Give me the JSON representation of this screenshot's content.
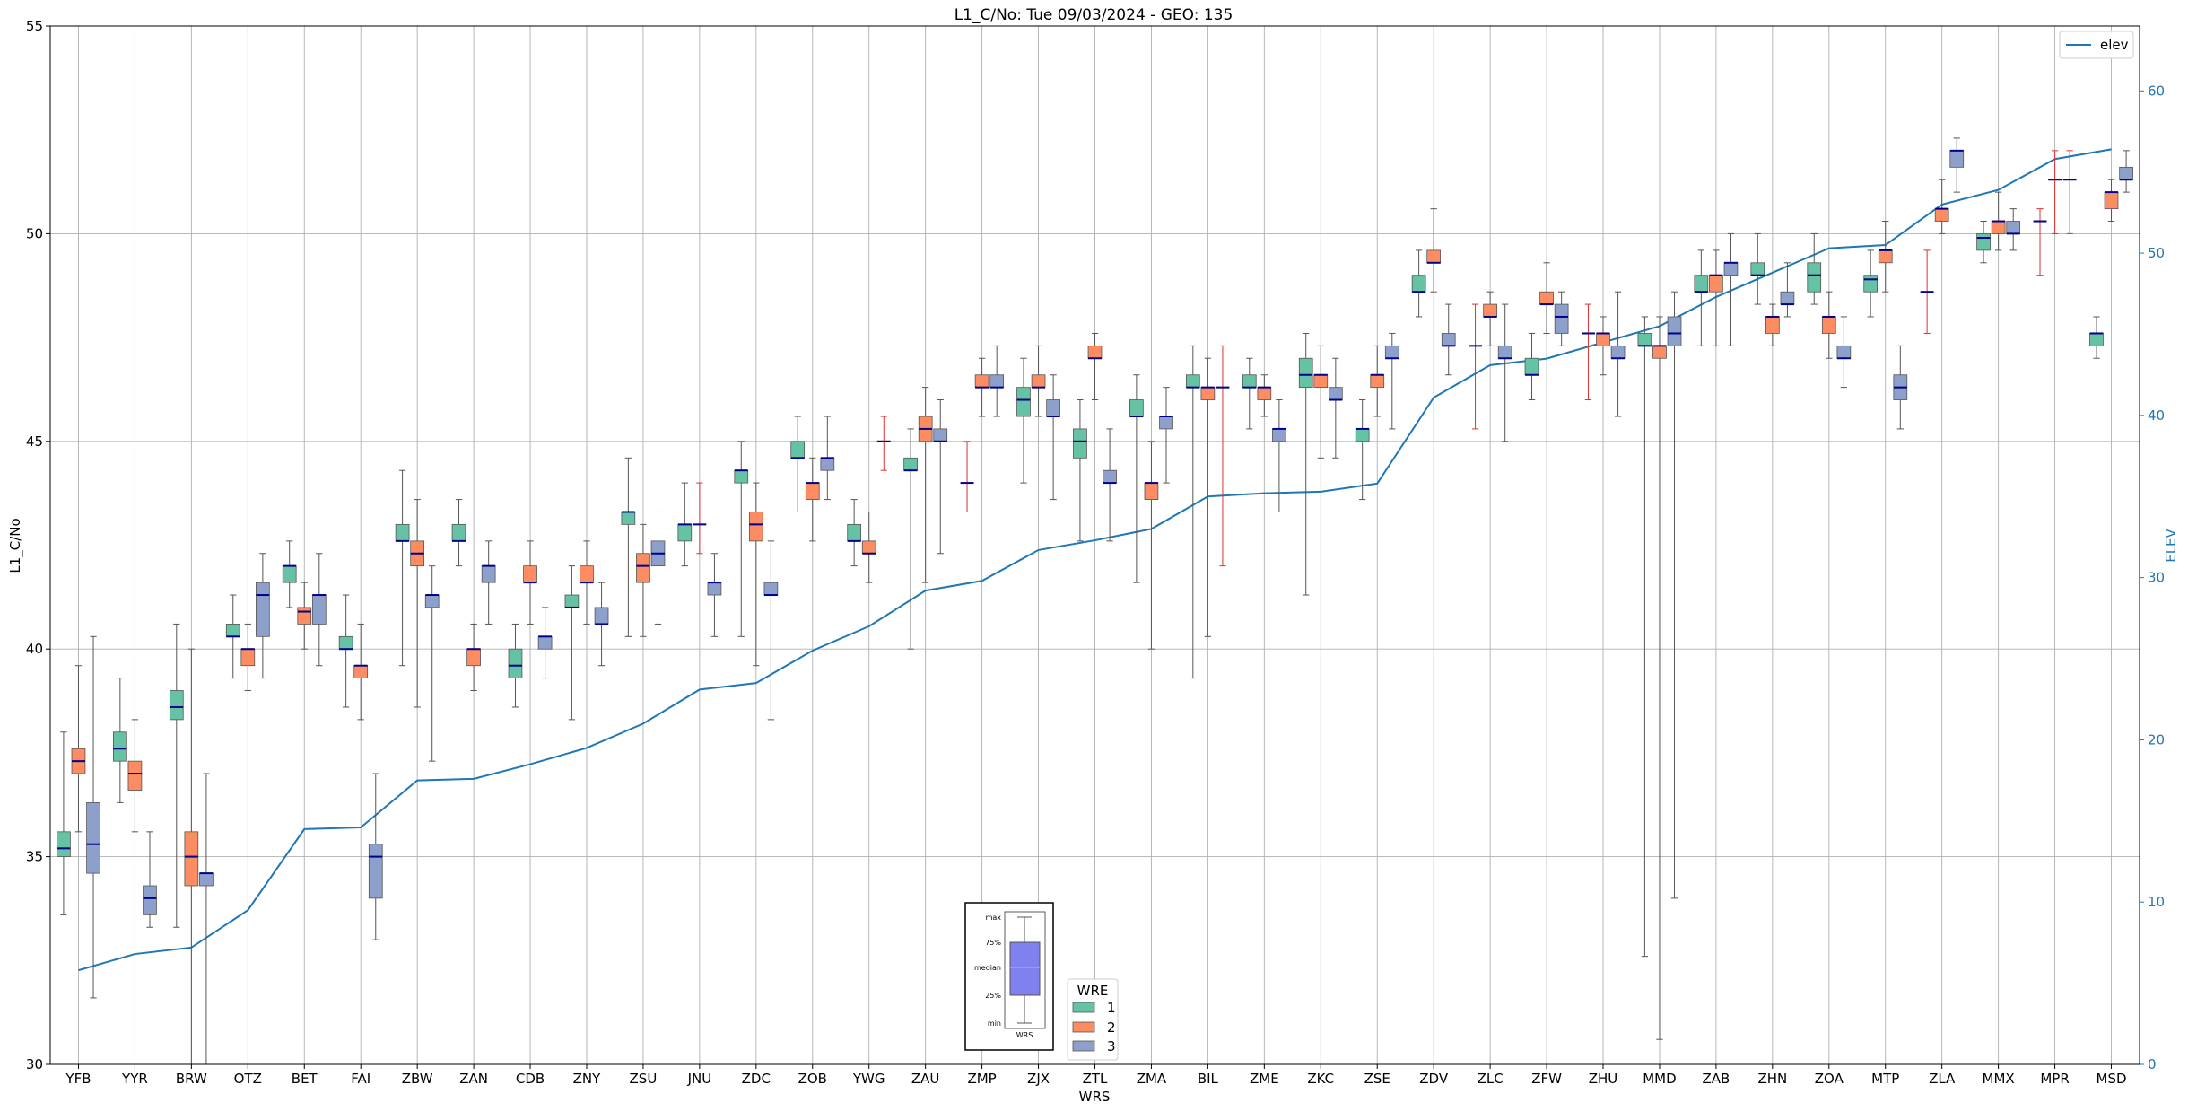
{
  "chart_data": {
    "type": "box",
    "title": "L1_C/No: Tue 09/03/2024 - GEO: 135",
    "xlabel": "WRS",
    "ylabel": "L1_C/No",
    "ylabel_right": "ELEV",
    "ylim": [
      30,
      55
    ],
    "ylim_right": [
      0,
      64
    ],
    "yticks": [
      30,
      35,
      40,
      45,
      50,
      55
    ],
    "yticks_right": [
      0,
      10,
      20,
      30,
      40,
      50,
      60
    ],
    "grid": true,
    "categories": [
      "YFB",
      "YYR",
      "BRW",
      "OTZ",
      "BET",
      "FAI",
      "ZBW",
      "ZAN",
      "CDB",
      "ZNY",
      "ZSU",
      "JNU",
      "ZDC",
      "ZOB",
      "YWG",
      "ZAU",
      "ZMP",
      "ZJX",
      "ZTL",
      "ZMA",
      "BIL",
      "ZME",
      "ZKC",
      "ZSE",
      "ZDV",
      "ZLC",
      "ZFW",
      "ZHU",
      "MMD",
      "ZAB",
      "ZHN",
      "ZOA",
      "MTP",
      "ZLA",
      "MMX",
      "MPR",
      "MSD"
    ],
    "wre_colors": {
      "1": "#66c2a5",
      "2": "#fc8d62",
      "3": "#8da0cb"
    },
    "median_color": "#00008b",
    "elev_color": "#1f77b4",
    "legend_wre": {
      "title": "WRE",
      "items": [
        "1",
        "2",
        "3"
      ],
      "position": "bottom-center"
    },
    "legend_elev": {
      "label": "elev",
      "position": "top-right"
    },
    "inset": {
      "labels": {
        "max": "max",
        "q3": "75%",
        "median": "median",
        "q1": "25%",
        "min": "min",
        "xlabel": "WRS"
      }
    },
    "elev": [
      5.8,
      6.8,
      7.2,
      9.5,
      14.5,
      14.6,
      17.5,
      17.6,
      18.5,
      19.5,
      21.0,
      23.1,
      23.5,
      25.5,
      27.0,
      29.2,
      29.8,
      31.7,
      32.3,
      33.0,
      35.0,
      35.2,
      35.3,
      35.8,
      41.1,
      43.1,
      43.5,
      44.5,
      45.5,
      47.3,
      48.8,
      50.3,
      50.5,
      53.0,
      53.9,
      55.8,
      56.4
    ],
    "series": [
      {
        "name": "1",
        "boxes": [
          [
            0,
            33.6,
            35.0,
            35.2,
            35.6,
            38.0
          ],
          [
            1,
            36.3,
            37.3,
            37.6,
            38.0,
            39.3
          ],
          [
            2,
            33.3,
            38.3,
            38.6,
            39.0,
            40.6
          ],
          [
            3,
            39.3,
            40.3,
            40.3,
            40.6,
            41.3
          ],
          [
            4,
            41.0,
            41.6,
            42.0,
            42.0,
            42.6
          ],
          [
            5,
            38.6,
            40.0,
            40.0,
            40.3,
            41.3
          ],
          [
            6,
            39.6,
            42.6,
            42.6,
            43.0,
            44.3
          ],
          [
            7,
            42.0,
            42.6,
            42.6,
            43.0,
            43.6
          ],
          [
            8,
            38.6,
            39.3,
            39.6,
            40.0,
            40.6
          ],
          [
            9,
            38.3,
            41.0,
            41.0,
            41.3,
            42.0
          ],
          [
            10,
            40.3,
            43.0,
            43.3,
            43.3,
            44.6
          ],
          [
            11,
            42.0,
            42.6,
            43.0,
            43.0,
            44.0
          ],
          [
            12,
            40.3,
            44.0,
            44.3,
            44.3,
            45.0
          ],
          [
            13,
            43.3,
            44.6,
            44.6,
            45.0,
            45.6
          ],
          [
            14,
            42.0,
            42.6,
            42.6,
            43.0,
            43.6
          ],
          [
            15,
            40.0,
            44.3,
            44.3,
            44.6,
            45.3
          ],
          [
            16,
            43.3,
            44.0,
            44.0,
            44.0,
            45.0
          ],
          [
            17,
            44.0,
            45.6,
            46.0,
            46.3,
            47.0
          ],
          [
            18,
            42.6,
            44.6,
            45.0,
            45.3,
            46.0
          ],
          [
            19,
            41.6,
            45.6,
            45.6,
            46.0,
            46.6
          ],
          [
            20,
            39.3,
            46.3,
            46.3,
            46.6,
            47.3
          ],
          [
            21,
            45.3,
            46.3,
            46.3,
            46.6,
            47.0
          ],
          [
            22,
            41.3,
            46.3,
            46.6,
            47.0,
            47.6
          ],
          [
            23,
            43.6,
            45.0,
            45.3,
            45.3,
            46.0
          ],
          [
            24,
            48.0,
            48.6,
            48.6,
            49.0,
            49.6
          ],
          [
            25,
            45.3,
            47.3,
            47.3,
            47.3,
            48.3
          ],
          [
            26,
            46.0,
            46.6,
            46.6,
            47.0,
            47.6
          ],
          [
            27,
            46.0,
            47.6,
            47.6,
            47.6,
            48.3
          ],
          [
            28,
            32.6,
            47.3,
            47.3,
            47.6,
            48.0
          ],
          [
            29,
            47.3,
            48.6,
            48.6,
            49.0,
            49.6
          ],
          [
            30,
            48.3,
            49.0,
            49.0,
            49.3,
            50.0
          ],
          [
            31,
            48.3,
            48.6,
            49.0,
            49.3,
            50.0
          ],
          [
            32,
            48.0,
            48.6,
            48.9,
            49.0,
            49.6
          ],
          [
            33,
            47.6,
            48.6,
            48.6,
            48.6,
            49.6
          ],
          [
            34,
            49.3,
            49.6,
            49.9,
            50.0,
            50.3
          ],
          [
            35,
            49.0,
            50.3,
            50.3,
            50.3,
            50.6
          ],
          [
            36,
            47.0,
            47.3,
            47.6,
            47.6,
            48.0
          ]
        ]
      },
      {
        "name": "2",
        "boxes": [
          [
            0,
            35.6,
            37.0,
            37.3,
            37.6,
            39.6
          ],
          [
            1,
            35.6,
            36.6,
            37.0,
            37.3,
            38.3
          ],
          [
            2,
            30.0,
            34.3,
            35.0,
            35.6,
            40.0
          ],
          [
            3,
            39.0,
            39.6,
            40.0,
            40.0,
            40.6
          ],
          [
            4,
            40.0,
            40.6,
            40.9,
            41.0,
            41.6
          ],
          [
            5,
            38.3,
            39.3,
            39.6,
            39.6,
            40.6
          ],
          [
            6,
            38.6,
            42.0,
            42.3,
            42.6,
            43.6
          ],
          [
            7,
            39.0,
            39.6,
            40.0,
            40.0,
            40.6
          ],
          [
            8,
            40.6,
            41.6,
            41.6,
            42.0,
            42.6
          ],
          [
            9,
            40.6,
            41.6,
            41.6,
            42.0,
            42.6
          ],
          [
            10,
            40.3,
            41.6,
            42.0,
            42.3,
            43.0
          ],
          [
            11,
            42.3,
            43.0,
            43.0,
            43.0,
            44.0
          ],
          [
            12,
            39.6,
            42.6,
            43.0,
            43.3,
            44.0
          ],
          [
            13,
            42.6,
            43.6,
            44.0,
            44.0,
            44.6
          ],
          [
            14,
            41.6,
            42.3,
            42.3,
            42.6,
            43.3
          ],
          [
            15,
            41.6,
            45.0,
            45.3,
            45.6,
            46.3
          ],
          [
            16,
            45.6,
            46.3,
            46.3,
            46.6,
            47.0
          ],
          [
            17,
            45.6,
            46.3,
            46.3,
            46.6,
            47.3
          ],
          [
            18,
            46.0,
            47.0,
            47.0,
            47.3,
            47.6
          ],
          [
            19,
            40.0,
            43.6,
            44.0,
            44.0,
            45.0
          ],
          [
            20,
            40.3,
            46.0,
            46.3,
            46.3,
            47.0
          ],
          [
            21,
            45.6,
            46.0,
            46.3,
            46.3,
            46.6
          ],
          [
            22,
            44.6,
            46.3,
            46.6,
            46.6,
            47.3
          ],
          [
            23,
            45.6,
            46.3,
            46.6,
            46.6,
            47.3
          ],
          [
            24,
            48.6,
            49.3,
            49.3,
            49.6,
            50.6
          ],
          [
            25,
            47.3,
            48.0,
            48.0,
            48.3,
            48.6
          ],
          [
            26,
            47.6,
            48.3,
            48.3,
            48.6,
            49.3
          ],
          [
            27,
            46.6,
            47.3,
            47.6,
            47.6,
            48.0
          ],
          [
            28,
            30.6,
            47.0,
            47.3,
            47.3,
            48.0
          ],
          [
            29,
            47.3,
            48.6,
            49.0,
            49.0,
            49.6
          ],
          [
            30,
            47.3,
            47.6,
            48.0,
            48.0,
            48.3
          ],
          [
            31,
            47.0,
            47.6,
            48.0,
            48.0,
            48.6
          ],
          [
            32,
            48.6,
            49.3,
            49.6,
            49.6,
            50.3
          ],
          [
            33,
            50.0,
            50.3,
            50.6,
            50.6,
            51.3
          ],
          [
            34,
            49.6,
            50.0,
            50.3,
            50.3,
            51.0
          ],
          [
            35,
            50.0,
            51.3,
            51.3,
            51.3,
            52.0
          ],
          [
            36,
            50.3,
            50.6,
            51.0,
            51.0,
            51.3
          ]
        ]
      },
      {
        "name": "3",
        "boxes": [
          [
            0,
            31.6,
            34.6,
            35.3,
            36.3,
            40.3
          ],
          [
            1,
            33.3,
            33.6,
            34.0,
            34.3,
            35.6
          ],
          [
            2,
            30.0,
            34.3,
            34.6,
            34.6,
            37.0
          ],
          [
            3,
            39.3,
            40.3,
            41.3,
            41.6,
            42.3
          ],
          [
            4,
            39.6,
            40.6,
            41.3,
            41.3,
            42.3
          ],
          [
            5,
            33.0,
            34.0,
            35.0,
            35.3,
            37.0
          ],
          [
            6,
            37.3,
            41.0,
            41.3,
            41.3,
            42.0
          ],
          [
            7,
            40.6,
            41.6,
            42.0,
            42.0,
            42.6
          ],
          [
            8,
            39.3,
            40.0,
            40.3,
            40.3,
            41.0
          ],
          [
            9,
            39.6,
            40.6,
            40.6,
            41.0,
            41.6
          ],
          [
            10,
            40.6,
            42.0,
            42.3,
            42.6,
            43.3
          ],
          [
            11,
            40.3,
            41.3,
            41.6,
            41.6,
            42.3
          ],
          [
            12,
            38.3,
            41.3,
            41.3,
            41.6,
            42.6
          ],
          [
            13,
            43.6,
            44.3,
            44.6,
            44.6,
            45.6
          ],
          [
            14,
            44.3,
            45.0,
            45.0,
            45.0,
            45.6
          ],
          [
            15,
            42.3,
            45.0,
            45.0,
            45.3,
            46.0
          ],
          [
            16,
            45.6,
            46.3,
            46.3,
            46.6,
            47.3
          ],
          [
            17,
            43.6,
            45.6,
            45.6,
            46.0,
            46.6
          ],
          [
            18,
            42.6,
            44.0,
            44.0,
            44.3,
            45.3
          ],
          [
            19,
            44.0,
            45.3,
            45.6,
            45.6,
            46.3
          ],
          [
            20,
            42.0,
            46.3,
            46.3,
            46.3,
            47.3
          ],
          [
            21,
            43.3,
            45.0,
            45.3,
            45.3,
            46.0
          ],
          [
            22,
            44.6,
            46.0,
            46.0,
            46.3,
            47.0
          ],
          [
            23,
            45.3,
            47.0,
            47.0,
            47.3,
            47.6
          ],
          [
            24,
            46.6,
            47.3,
            47.3,
            47.6,
            48.3
          ],
          [
            25,
            45.0,
            47.0,
            47.0,
            47.3,
            48.3
          ],
          [
            26,
            47.3,
            47.6,
            48.0,
            48.3,
            48.6
          ],
          [
            27,
            45.6,
            47.0,
            47.0,
            47.3,
            48.6
          ],
          [
            28,
            34.0,
            47.3,
            47.6,
            48.0,
            48.6
          ],
          [
            29,
            47.3,
            49.0,
            49.3,
            49.3,
            50.0
          ],
          [
            30,
            48.0,
            48.3,
            48.3,
            48.6,
            49.3
          ],
          [
            31,
            46.3,
            47.0,
            47.0,
            47.3,
            48.0
          ],
          [
            32,
            45.3,
            46.0,
            46.3,
            46.6,
            47.3
          ],
          [
            33,
            51.0,
            51.6,
            52.0,
            52.0,
            52.3
          ],
          [
            34,
            49.6,
            50.0,
            50.0,
            50.3,
            50.6
          ],
          [
            35,
            50.0,
            51.3,
            51.3,
            51.3,
            52.0
          ],
          [
            36,
            51.0,
            51.3,
            51.3,
            51.6,
            52.0
          ]
        ]
      }
    ]
  }
}
